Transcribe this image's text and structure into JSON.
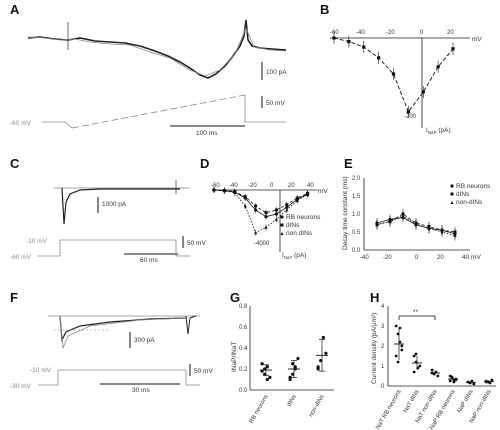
{
  "panels": {
    "A": {
      "letter": "A",
      "scale_current": "100 pA",
      "scale_voltage": "50 mV",
      "scale_time": "100 ms",
      "holding": "-60 mV"
    },
    "B": {
      "letter": "B",
      "x_unit": "mV",
      "y_label": "I",
      "y_label_sub": "NaP",
      "y_unit": " (pA)",
      "x_ticks": [
        "-60",
        "-40",
        "-20",
        "0",
        "20"
      ],
      "y_tick": "-200"
    },
    "C": {
      "letter": "C",
      "scale_current": "1000 pA",
      "scale_voltage": "50 mV",
      "scale_time": "60 ms",
      "step": "-10 mV",
      "holding": "-60 mV"
    },
    "D": {
      "letter": "D",
      "x_unit": "mV",
      "y_label": "I",
      "y_label_sub": "NaT",
      "y_unit": " (pA)",
      "x_ticks": [
        "-60",
        "-40",
        "-20",
        "0",
        "20",
        "40"
      ],
      "y_tick": "-4000",
      "legend": [
        "RB neurons",
        "dINs",
        "non dINs"
      ]
    },
    "E": {
      "letter": "E",
      "y_label": "Decay time constant (ms)",
      "x_unit": "40 mV",
      "x_ticks": [
        "-40",
        "-20",
        "0",
        "20"
      ],
      "y_ticks": [
        "0.0",
        "0.5",
        "1.0",
        "1.5",
        "2.0"
      ],
      "legend": [
        "RB neurons",
        "dINs",
        "non-dINs"
      ]
    },
    "F": {
      "letter": "F",
      "scale_current": "300 pA",
      "scale_voltage": "50 mV",
      "scale_time": "30 ms",
      "step": "-10 mV",
      "holding": "-30 mV"
    },
    "G": {
      "letter": "G",
      "y_label": "INaP/INaT",
      "y_ticks": [
        "0.0",
        "0.2",
        "0.4",
        "0.6",
        "0.8"
      ],
      "categories": [
        "RB neurons",
        "dINs",
        "non-dINs"
      ]
    },
    "H": {
      "letter": "H",
      "y_label": "Current density (pA/µm²)",
      "y_ticks": [
        "0",
        "1",
        "2",
        "3",
        "4"
      ],
      "significance": "**",
      "categories": [
        "NaT RB neurons",
        "NaT dINs",
        "NaT non-dINs",
        "NaP RB neurons",
        "NaP dINs",
        "NaP non-dINs"
      ]
    }
  },
  "chart_data": [
    {
      "panel": "B",
      "type": "line",
      "x": [
        -60,
        -50,
        -40,
        -30,
        -20,
        -10,
        0,
        10,
        20
      ],
      "y": [
        0,
        -10,
        -25,
        -55,
        -100,
        -205,
        -150,
        -80,
        -30
      ],
      "xlim": [
        -60,
        30
      ],
      "ylim": [
        -260,
        0
      ]
    },
    {
      "panel": "D",
      "type": "line",
      "x": [
        -60,
        -50,
        -40,
        -30,
        -20,
        -10,
        0,
        10,
        20,
        30
      ],
      "series": [
        {
          "name": "RB neurons",
          "values": [
            0,
            -50,
            -150,
            -600,
            -1500,
            -2000,
            -1800,
            -1300,
            -700,
            -300
          ]
        },
        {
          "name": "dINs",
          "values": [
            0,
            -40,
            -120,
            -500,
            -1200,
            -1700,
            -1500,
            -1100,
            -600,
            -250
          ]
        },
        {
          "name": "non dINs",
          "values": [
            0,
            -60,
            -200,
            -1200,
            -3200,
            -2800,
            -2200,
            -1500,
            -800,
            -350
          ]
        }
      ],
      "xlim": [
        -60,
        40
      ],
      "ylim": [
        -4500,
        0
      ]
    },
    {
      "panel": "E",
      "type": "line",
      "x": [
        -30,
        -20,
        -10,
        0,
        10,
        20,
        30
      ],
      "series": [
        {
          "name": "RB neurons",
          "values": [
            0.75,
            0.85,
            0.9,
            0.7,
            0.6,
            0.55,
            0.45
          ]
        },
        {
          "name": "dINs",
          "values": [
            0.7,
            0.8,
            1.0,
            0.75,
            0.65,
            0.55,
            0.5
          ]
        },
        {
          "name": "non-dINs",
          "values": [
            0.72,
            0.78,
            0.95,
            0.72,
            0.6,
            0.5,
            0.4
          ]
        }
      ],
      "xlim": [
        -40,
        40
      ],
      "ylim": [
        0,
        2.0
      ]
    },
    {
      "panel": "G",
      "type": "scatter",
      "categories": [
        "RB neurons",
        "dINs",
        "non-dINs"
      ],
      "series": [
        {
          "name": "RB neurons",
          "points": [
            0.18,
            0.15,
            0.22,
            0.12,
            0.25,
            0.2,
            0.1
          ],
          "mean": 0.19,
          "sd": 0.05
        },
        {
          "name": "dINs",
          "points": [
            0.1,
            0.15,
            0.22,
            0.3,
            0.12,
            0.25,
            0.2
          ],
          "mean": 0.2,
          "sd": 0.08
        },
        {
          "name": "non-dINs",
          "points": [
            0.2,
            0.28,
            0.5,
            0.35,
            0.22
          ],
          "mean": 0.33,
          "sd": 0.15
        }
      ],
      "ylim": [
        0,
        0.8
      ]
    },
    {
      "panel": "H",
      "type": "scatter",
      "categories": [
        "NaT RB neurons",
        "NaT dINs",
        "NaT non-dINs",
        "NaP RB neurons",
        "NaP dINs",
        "NaP non-dINs"
      ],
      "series": [
        {
          "name": "NaT RB neurons",
          "points": [
            3.0,
            2.6,
            2.2,
            1.8,
            1.5,
            1.2,
            2.9,
            2.0
          ],
          "mean": 2.1,
          "sd": 0.8
        },
        {
          "name": "NaT dINs",
          "points": [
            1.5,
            1.2,
            0.9,
            1.0,
            0.7,
            1.6
          ],
          "mean": 1.15,
          "sd": 0.35
        },
        {
          "name": "NaT non-dINs",
          "points": [
            0.8,
            0.6,
            0.7,
            0.5,
            0.65
          ],
          "mean": 0.65,
          "sd": 0.12
        },
        {
          "name": "NaP RB neurons",
          "points": [
            0.5,
            0.4,
            0.3,
            0.35,
            0.25,
            0.45,
            0.2,
            0.3
          ],
          "mean": 0.35,
          "sd": 0.1
        },
        {
          "name": "NaP dINs",
          "points": [
            0.2,
            0.15,
            0.25,
            0.1,
            0.2
          ],
          "mean": 0.18,
          "sd": 0.06
        },
        {
          "name": "NaP non-dINs",
          "points": [
            0.25,
            0.2,
            0.15,
            0.3,
            0.2
          ],
          "mean": 0.22,
          "sd": 0.07
        }
      ],
      "ylim": [
        0,
        4
      ]
    }
  ]
}
